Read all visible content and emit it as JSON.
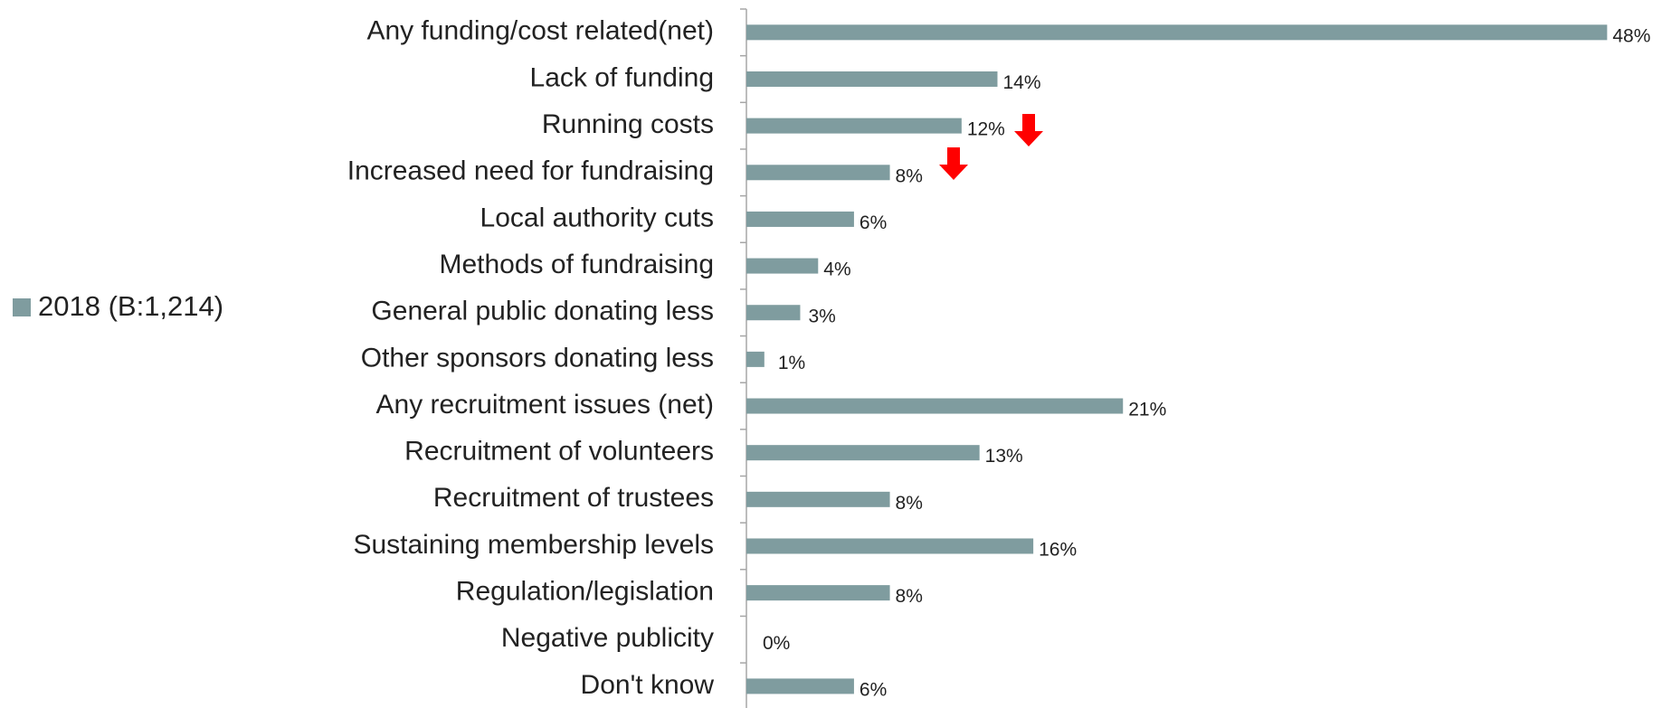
{
  "chart_data": {
    "type": "bar",
    "orientation": "horizontal",
    "categories": [
      "Any funding/cost related(net)",
      "Lack of funding",
      "Running costs",
      "Increased need for fundraising",
      "Local authority cuts",
      "Methods of fundraising",
      "General public donating less",
      "Other sponsors donating less",
      "Any recruitment issues (net)",
      "Recruitment of volunteers",
      "Recruitment of trustees",
      "Sustaining membership levels",
      "Regulation/legislation",
      "Negative publicity",
      "Don't know"
    ],
    "series": [
      {
        "name": "2018 (B:1,214)",
        "color": "#7f9c9f",
        "values": [
          48,
          14,
          12,
          8,
          6,
          4,
          3,
          1,
          21,
          13,
          8,
          16,
          8,
          0,
          6
        ],
        "value_labels": [
          "48%",
          "14%",
          "12%",
          "8%",
          "6%",
          "4%",
          "3%",
          "1%",
          "21%",
          "13%",
          "8%",
          "16%",
          "8%",
          "0%",
          "6%"
        ]
      }
    ],
    "legend": "left"
  }
}
